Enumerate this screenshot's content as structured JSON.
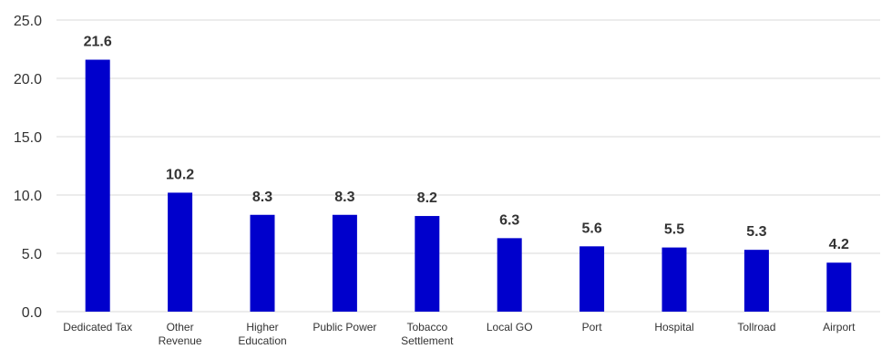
{
  "chart_data": {
    "type": "bar",
    "categories": [
      [
        "Dedicated Tax"
      ],
      [
        "Other",
        "Revenue"
      ],
      [
        "Higher",
        "Education"
      ],
      [
        "Public Power"
      ],
      [
        "Tobacco",
        "Settlement"
      ],
      [
        "Local GO"
      ],
      [
        "Port"
      ],
      [
        "Hospital"
      ],
      [
        "Tollroad"
      ],
      [
        "Airport"
      ]
    ],
    "values": [
      21.6,
      10.2,
      8.3,
      8.3,
      8.2,
      6.3,
      5.6,
      5.5,
      5.3,
      4.2
    ],
    "data_labels": [
      "21.6",
      "10.2",
      "8.3",
      "8.3",
      "8.2",
      "6.3",
      "5.6",
      "5.5",
      "5.3",
      "4.2"
    ],
    "yticks": [
      "0.0",
      "5.0",
      "10.0",
      "15.0",
      "20.0",
      "25.0"
    ],
    "ylim": [
      0,
      25
    ],
    "grid": true,
    "bar_color": "#0000cc",
    "grid_color": "#d9d9d9"
  }
}
